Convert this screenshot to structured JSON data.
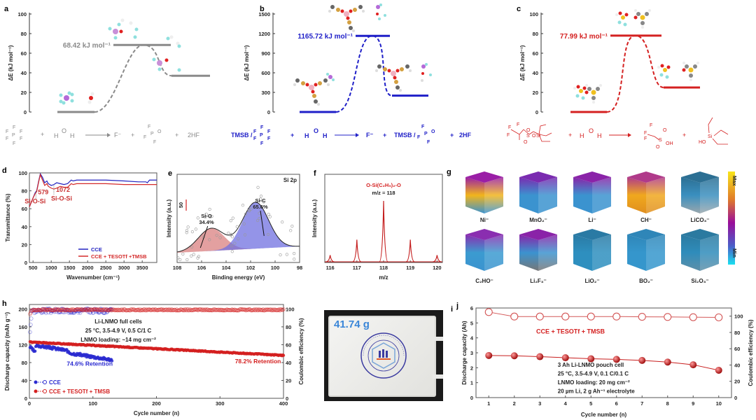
{
  "panels": {
    "a": {
      "label": "a",
      "ylabel": "ΔE (kJ mol⁻¹)",
      "yticks": [
        "0",
        "20",
        "40",
        "60",
        "80",
        "100"
      ],
      "ymax": 100,
      "levels": {
        "reactant": 0,
        "ts": 68.42,
        "product": 37
      },
      "barrier_label": "68.42 kJ mol⁻¹",
      "color": "#8a8a8a",
      "equation": {
        "plus1": "+",
        "water": "H O H",
        "product1": "F⁻",
        "plus2": "+",
        "plus3": "+",
        "product3": "2HF"
      }
    },
    "b": {
      "label": "b",
      "ylabel": "ΔE (kJ mol⁻¹)",
      "yticks": [
        "0",
        "300",
        "600",
        "900",
        "1200",
        "1500"
      ],
      "ymax": 1500,
      "levels": {
        "reactant": 0,
        "ts": 1165.72,
        "product": 250
      },
      "barrier_label": "1165.72 kJ mol⁻¹",
      "color": "#1f1fc8",
      "equation": {
        "prefix": "TMSB /",
        "plus1": "+",
        "water": "H O H",
        "product1": "F⁻",
        "plus2": "+",
        "prefix2": "TMSB /",
        "plus3": "+",
        "product3": "2HF"
      }
    },
    "c": {
      "label": "c",
      "ylabel": "ΔE (kJ mol⁻¹)",
      "yticks": [
        "0",
        "20",
        "40",
        "60",
        "80",
        "100"
      ],
      "ymax": 100,
      "levels": {
        "reactant": 0,
        "ts": 77.99,
        "product": 25
      },
      "barrier_label": "77.99 kJ mol⁻¹",
      "color": "#d42020",
      "equation": {
        "plus1": "+",
        "water": "H O H",
        "plus2": "+"
      }
    },
    "g": {
      "label": "g",
      "cubes": [
        {
          "name": "Ni⁻",
          "colors": [
            "#f2b51c",
            "#9a1ea6",
            "#3b93cf"
          ]
        },
        {
          "name": "MnO₂⁻",
          "colors": [
            "#3b93cf",
            "#7a2bb0",
            "#3b93cf"
          ]
        },
        {
          "name": "Li⁻",
          "colors": [
            "#3b93cf",
            "#8a23a8",
            "#3b93cf"
          ]
        },
        {
          "name": "CH⁻",
          "colors": [
            "#f0a81e",
            "#b03a8a",
            "#e08f1f"
          ]
        },
        {
          "name": "LiCO₃⁻",
          "colors": [
            "#3a8fbf",
            "#2c6f93",
            "#9aa7ad"
          ]
        },
        {
          "name": "C₂HO⁻",
          "colors": [
            "#3b9bd0",
            "#8a2eb0",
            "#3b93cf"
          ]
        },
        {
          "name": "Li₂F₃⁻",
          "colors": [
            "#3b93cf",
            "#8a23a8",
            "#777"
          ]
        },
        {
          "name": "LiO₂⁻",
          "colors": [
            "#2e8fbf",
            "#2a7aa4",
            "#2e8fbf"
          ]
        },
        {
          "name": "BO₂⁻",
          "colors": [
            "#3596cc",
            "#2f86b8",
            "#3596cc"
          ]
        },
        {
          "name": "Si₂O₃⁻",
          "colors": [
            "#2f8cbb",
            "#2b7aa0",
            "#5e8fa8"
          ]
        }
      ],
      "colorbar": {
        "max_label": "Max",
        "min_label": "Min"
      }
    },
    "i": {
      "label": "i",
      "mass_label": "41.74 g",
      "seal_text": "ANHUI UNIVERSITY OF TECHNOLOGY"
    }
  },
  "chart_data": [
    {
      "id": "d",
      "type": "line",
      "label": "d",
      "xlabel": "Wavenumber (cm⁻¹)",
      "ylabel": "Transmittance (%)",
      "xlim": [
        400,
        3900
      ],
      "ylim": [
        0,
        100
      ],
      "xticks": [
        500,
        1000,
        1500,
        2000,
        2500,
        3000,
        3500
      ],
      "yticks": [
        0,
        20,
        40,
        60,
        80,
        100
      ],
      "series": [
        {
          "name": "CCE",
          "color": "#2222c0",
          "x": [
            400,
            500,
            560,
            600,
            650,
            700,
            760,
            820,
            880,
            920,
            1000,
            1072,
            1150,
            1250,
            1350,
            1450,
            1550,
            1600,
            1700,
            2000,
            2500,
            3000,
            3400,
            3600,
            3640,
            3700,
            3900
          ],
          "y": [
            62,
            72,
            78,
            80,
            90,
            99,
            95,
            89,
            91,
            88,
            86,
            87,
            89,
            88,
            87,
            88,
            92,
            91,
            92,
            92,
            92,
            91,
            90,
            90,
            89,
            92,
            92
          ]
        },
        {
          "name": "CCE + TESOTf +TMSB",
          "color": "#d42a2a",
          "x": [
            400,
            500,
            560,
            600,
            650,
            700,
            760,
            820,
            880,
            920,
            1000,
            1072,
            1150,
            1250,
            1350,
            1450,
            1550,
            1600,
            1700,
            2000,
            2500,
            3000,
            3400,
            3600,
            3700,
            3900
          ],
          "y": [
            62,
            72,
            77,
            79,
            89,
            98,
            92,
            86,
            88,
            85,
            83,
            82,
            83,
            85,
            84,
            84,
            88,
            87,
            88,
            88,
            88,
            87,
            87,
            87,
            87,
            87
          ]
        }
      ],
      "annotations": [
        {
          "text": "579",
          "x": 579
        },
        {
          "text": "Si-O-Si",
          "x": 579
        },
        {
          "text": "1072",
          "x": 1072
        },
        {
          "text": "Si-O-Si",
          "x": 1072
        }
      ],
      "legend": "bottom-right"
    },
    {
      "id": "e",
      "type": "area",
      "label": "e",
      "title": "Si 2p",
      "xlabel": "Binding energy (eV)",
      "ylabel": "Intensity (a.u.)",
      "xlim": [
        108,
        98
      ],
      "xticks": [
        108,
        106,
        104,
        102,
        100,
        98
      ],
      "scale_bar": "50",
      "peaks": [
        {
          "name": "Si-O",
          "percent": "34.4%",
          "center": 105.2,
          "height": 0.38,
          "color": "#d98080"
        },
        {
          "name": "Si-C",
          "percent": "65.6%",
          "center": 101.6,
          "height": 0.78,
          "color": "#7070e0"
        }
      ]
    },
    {
      "id": "f",
      "type": "line",
      "label": "f",
      "xlabel": "m/z",
      "ylabel": "Intensity (a.u.)",
      "xlim": [
        115.8,
        120.2
      ],
      "xticks": [
        116,
        117,
        118,
        119,
        120
      ],
      "annotation_formula": "O-Si(C₂H₅)₂-O",
      "annotation_mz": "m/z = 118",
      "peaks": [
        {
          "x": 116,
          "y": 0.12
        },
        {
          "x": 117,
          "y": 0.37
        },
        {
          "x": 118,
          "y": 1.0
        },
        {
          "x": 119,
          "y": 0.37
        },
        {
          "x": 120,
          "y": 0.12
        }
      ],
      "color": "#c41e1e"
    },
    {
      "id": "h",
      "type": "scatter",
      "label": "h",
      "xlabel": "Cycle number (n)",
      "ylabel": "Discharge capacity (mAh g⁻¹)",
      "y2label": "Coulombic efficiency (%)",
      "xlim": [
        0,
        400
      ],
      "ylim": [
        0,
        210
      ],
      "y2lim": [
        0,
        105
      ],
      "xticks": [
        0,
        100,
        200,
        300,
        400
      ],
      "yticks": [
        0,
        40,
        80,
        120,
        160,
        200
      ],
      "y2ticks": [
        0,
        20,
        40,
        60,
        80,
        100
      ],
      "info": [
        "Li-LNMO full cells",
        "25 °C, 3.5-4.9 V, 0.5 C/1 C",
        "LNMO loading: ~14 mg cm⁻²"
      ],
      "series": [
        {
          "name": "CCE",
          "color": "#2a2ad0",
          "cycles": 130,
          "capacity_start": 116,
          "capacity_end": 86,
          "retention": "74.6% Retention",
          "ce_mean": 98
        },
        {
          "name": "CCE + TESOTf + TMSB",
          "color": "#d42020",
          "cycles": 400,
          "capacity_start": 126,
          "capacity_end": 96,
          "retention": "78.2% Retention",
          "ce_mean": 99
        }
      ],
      "legend": "bottom-left"
    },
    {
      "id": "j",
      "type": "line",
      "label": "j",
      "xlabel": "Cycle number (n)",
      "ylabel": "Discharge capacity (Ah)",
      "y2label": "Coulombic efficiency (%)",
      "x": [
        1,
        2,
        3,
        4,
        5,
        6,
        7,
        8,
        9,
        10
      ],
      "xlim": [
        0.5,
        10.5
      ],
      "ylim": [
        0,
        6
      ],
      "y2lim": [
        0,
        110
      ],
      "yticks": [
        0,
        1,
        2,
        3,
        4,
        5,
        6
      ],
      "y2ticks": [
        0,
        20,
        40,
        60,
        80,
        100
      ],
      "series": [
        {
          "name": "Discharge capacity",
          "axis": "left",
          "values": [
            2.82,
            2.8,
            2.74,
            2.67,
            2.6,
            2.56,
            2.49,
            2.38,
            2.2,
            1.83
          ]
        },
        {
          "name": "Coulombic efficiency",
          "axis": "right",
          "values": [
            105,
            99.5,
            99.5,
            99.5,
            99.5,
            99.5,
            99.2,
            99.0,
            98.7,
            98.5
          ]
        }
      ],
      "color": "#c81e1e",
      "series_label": "CCE + TESOTf + TMSB",
      "info": [
        "3 Ah Li-LNMO pouch cell",
        "25 °C, 3.5-4.9 V, 0.1 C/0.1 C",
        "LNMO loading: 20 mg cm⁻²",
        "20 µm Li, 2 g Ah⁻¹ electrolyte"
      ]
    }
  ]
}
